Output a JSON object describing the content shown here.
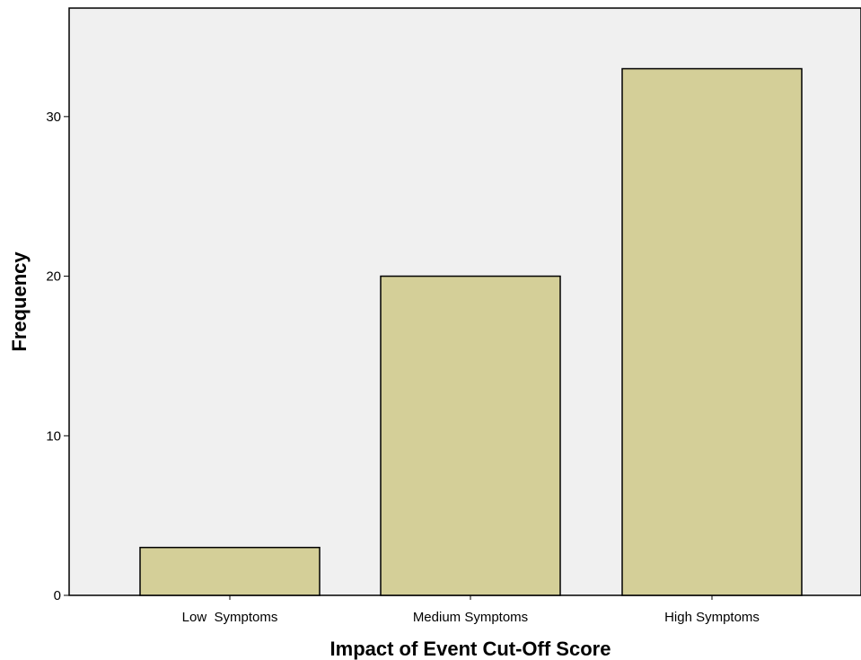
{
  "chart_data": {
    "type": "bar",
    "title": "",
    "xlabel": "Impact of Event Cut-Off Score",
    "ylabel": "Frequency",
    "categories": [
      "Low  Symptoms",
      "Medium Symptoms",
      "High Symptoms"
    ],
    "values": [
      3,
      20,
      33
    ],
    "ylim": [
      0,
      36.8
    ],
    "yticks": [
      0,
      10,
      20,
      30
    ],
    "ytick_labels": [
      "0",
      "10",
      "20",
      "30"
    ],
    "grid": false,
    "legend": "none",
    "colors": {
      "bar_fill": "#d4cf98",
      "bar_stroke": "#000000",
      "plot_background": "#f0f0f0",
      "page_background": "#ffffff"
    }
  }
}
